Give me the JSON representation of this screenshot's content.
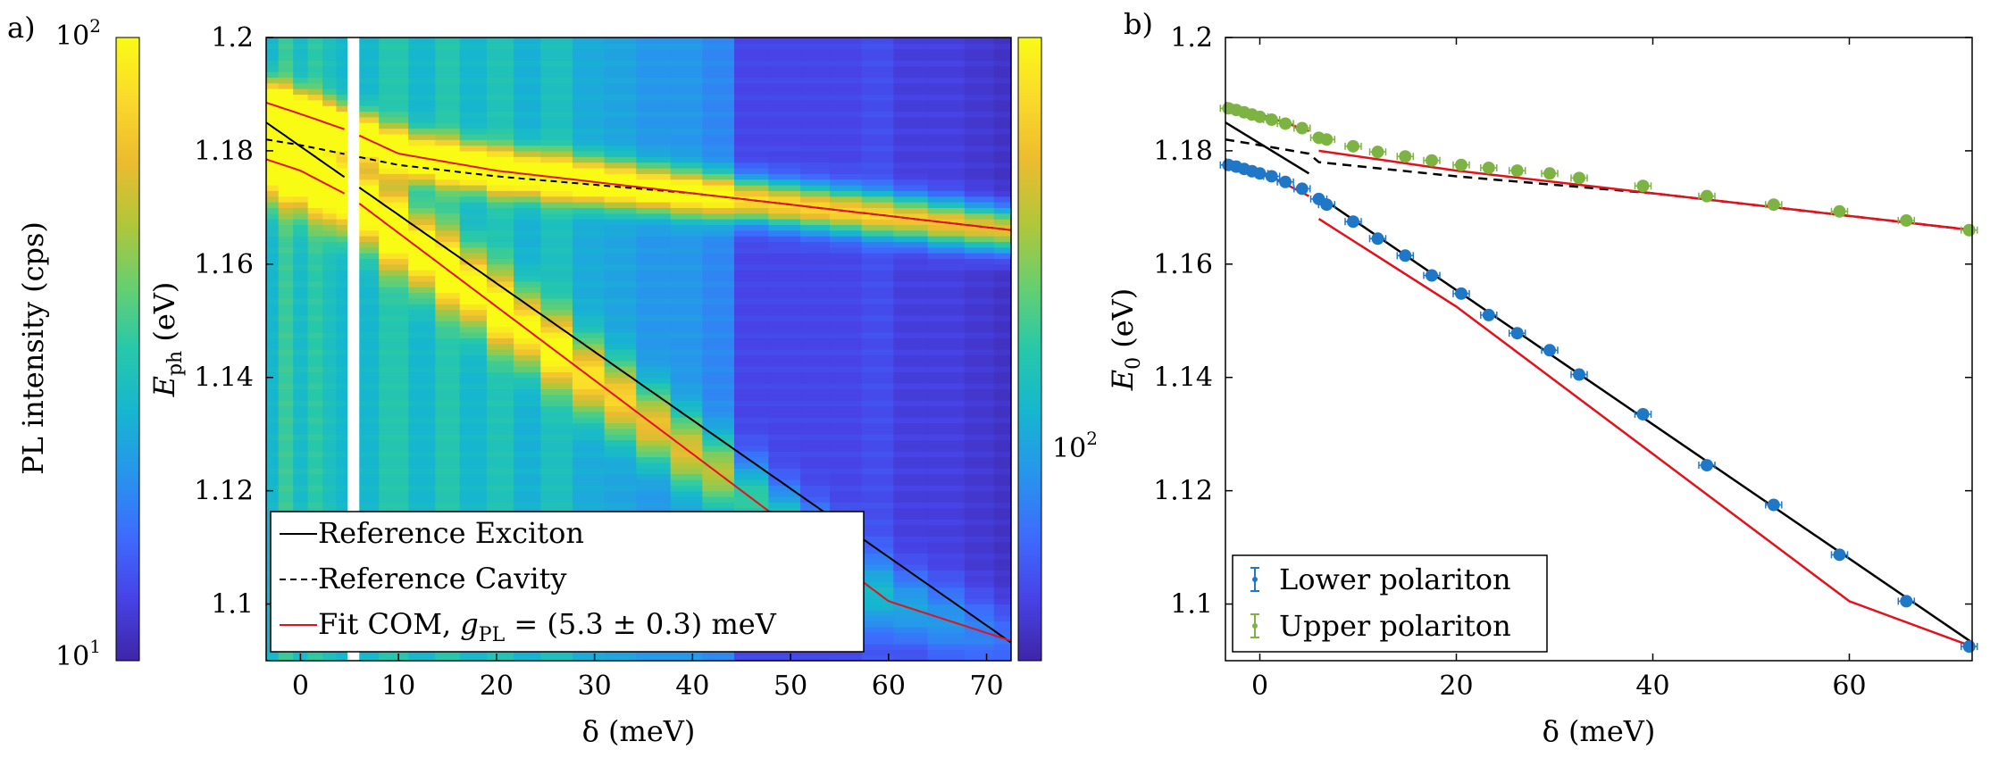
{
  "panel_labels": {
    "a": "a)",
    "b": "b)"
  },
  "colors": {
    "exciton": "#000000",
    "cavity": "#000000",
    "fit": "#e3111b",
    "lower": "#1f77c8",
    "upper": "#7cb342",
    "cmap": [
      "#3e26a8",
      "#4743e6",
      "#3d6cfd",
      "#2795ec",
      "#16b6cf",
      "#27c8aa",
      "#67cf6f",
      "#b1c63a",
      "#ecbb2f",
      "#fad92b",
      "#f9fb15"
    ]
  },
  "chart_data": [
    {
      "panel": "a",
      "type": "heatmap",
      "xlabel": "δ (meV)",
      "ylabel": "E_ph (eV)",
      "ylabel_main": "E",
      "ylabel_sub": "ph",
      "ylabel_unit": " (eV)",
      "xlim": [
        -3.5,
        72.5
      ],
      "ylim": [
        1.09,
        1.2
      ],
      "xticks": [
        "0",
        "10",
        "20",
        "30",
        "40",
        "50",
        "60",
        "70"
      ],
      "xtick_values": [
        0,
        10,
        20,
        30,
        40,
        50,
        60,
        70
      ],
      "yticks": [
        "1.1",
        "1.12",
        "1.14",
        "1.16",
        "1.18",
        "1.2"
      ],
      "ytick_values": [
        1.1,
        1.12,
        1.14,
        1.16,
        1.18,
        1.2
      ],
      "gap": [
        4.8,
        6.0
      ],
      "columns_x": [
        -3,
        -1.5,
        0,
        1.5,
        3,
        4.3,
        6.5,
        9.5,
        12.5,
        15,
        17.5,
        20.5,
        23,
        26,
        29.5,
        32.5,
        36,
        39.5,
        42.5,
        46,
        49.5,
        52.5,
        55.5,
        59,
        62,
        66,
        69.5,
        72
      ],
      "columns_bg": [
        0.4,
        0.52,
        0.42,
        0.5,
        0.44,
        0.4,
        0.4,
        0.48,
        0.4,
        0.48,
        0.4,
        0.46,
        0.38,
        0.44,
        0.36,
        0.34,
        0.3,
        0.3,
        0.26,
        0.1,
        0.1,
        0.1,
        0.1,
        0.12,
        0.08,
        0.08,
        0.06,
        0.04
      ],
      "lines": [
        {
          "name": "Reference Exciton",
          "style": "solid",
          "color": "#000000",
          "x": [
            -3.5,
            72.5
          ],
          "y": [
            1.185,
            1.0932
          ]
        },
        {
          "name": "Reference Cavity",
          "style": "dashed",
          "color": "#000000",
          "x": [
            -3.5,
            0,
            10,
            20,
            30,
            40,
            50,
            60,
            72.5
          ],
          "y": [
            1.182,
            1.181,
            1.1775,
            1.1755,
            1.174,
            1.1725,
            1.1705,
            1.1685,
            1.166
          ]
        },
        {
          "name": "Fit COM upper",
          "style": "solid",
          "color": "#e3111b",
          "x": [
            -3.5,
            0,
            5,
            10,
            20,
            30,
            40,
            50,
            60,
            72.5
          ],
          "y": [
            1.1885,
            1.1865,
            1.1835,
            1.1795,
            1.1765,
            1.1745,
            1.1725,
            1.1705,
            1.1685,
            1.166
          ]
        },
        {
          "name": "Fit COM lower",
          "style": "solid",
          "color": "#e3111b",
          "x": [
            -3.5,
            0,
            5,
            10,
            20,
            30,
            40,
            50,
            60,
            72.5
          ],
          "y": [
            1.1785,
            1.1765,
            1.172,
            1.1655,
            1.1525,
            1.1395,
            1.1265,
            1.1135,
            1.1005,
            1.0935
          ]
        }
      ],
      "legend": [
        {
          "label": "Reference Exciton",
          "style": "solid",
          "color": "#000000"
        },
        {
          "label": "Reference Cavity",
          "style": "dashed",
          "color": "#000000"
        },
        {
          "label": "Fit COM, ",
          "math": "g",
          "math_sub": "PL",
          "math_tail": " = (5.3 ± 0.3) meV",
          "style": "solid",
          "color": "#e3111b"
        }
      ],
      "legend_position": "bottom-left",
      "colorbar_left": {
        "label": "PL intensity (cps)",
        "max_label": "10",
        "max_exp": "2",
        "min_label": "10",
        "min_exp": "1"
      },
      "colorbar_right": {
        "label": "10",
        "label_exp": "2"
      }
    },
    {
      "panel": "b",
      "type": "scatter",
      "xlabel": "δ (meV)",
      "ylabel": "E_0 (eV)",
      "ylabel_main": "E",
      "ylabel_sub": "0",
      "ylabel_unit": " (eV)",
      "xlim": [
        -3.5,
        72.5
      ],
      "ylim": [
        1.09,
        1.2
      ],
      "xticks": [
        "0",
        "20",
        "40",
        "60"
      ],
      "xtick_values": [
        0,
        20,
        40,
        60
      ],
      "yticks": [
        "1.1",
        "1.12",
        "1.14",
        "1.16",
        "1.18",
        "1.2"
      ],
      "ytick_values": [
        1.1,
        1.12,
        1.14,
        1.16,
        1.18,
        1.2
      ],
      "series": [
        {
          "name": "Lower polariton",
          "color": "#1f77c8",
          "x": [
            -3.2,
            -2.4,
            -1.6,
            -0.8,
            0,
            1.2,
            2.6,
            4.3,
            6.0,
            6.8,
            9.5,
            12.0,
            14.8,
            17.5,
            20.5,
            23.3,
            26.2,
            29.5,
            32.5,
            39.0,
            45.5,
            52.3,
            59.0,
            65.8,
            72.2
          ],
          "y": [
            1.1775,
            1.1772,
            1.1768,
            1.1764,
            1.176,
            1.1755,
            1.1745,
            1.1733,
            1.1715,
            1.1705,
            1.1675,
            1.1645,
            1.1615,
            1.158,
            1.1548,
            1.151,
            1.1478,
            1.1448,
            1.1405,
            1.1335,
            1.1245,
            1.1175,
            1.1087,
            1.1005,
            1.0925
          ]
        },
        {
          "name": "Upper polariton",
          "color": "#7cb342",
          "x": [
            -3.2,
            -2.4,
            -1.6,
            -0.8,
            0,
            1.2,
            2.6,
            4.3,
            6.0,
            6.8,
            9.5,
            12.0,
            14.8,
            17.5,
            20.5,
            23.3,
            26.2,
            29.5,
            32.5,
            39.0,
            45.5,
            52.3,
            59.0,
            65.8,
            72.2
          ],
          "y": [
            1.1875,
            1.1872,
            1.1868,
            1.1864,
            1.186,
            1.1855,
            1.1848,
            1.184,
            1.1823,
            1.182,
            1.1808,
            1.1798,
            1.179,
            1.1783,
            1.1775,
            1.177,
            1.1765,
            1.176,
            1.1752,
            1.1738,
            1.172,
            1.1705,
            1.1693,
            1.1677,
            1.166
          ]
        }
      ],
      "lines": [
        {
          "name": "Exciton",
          "style": "solid",
          "color": "#000000",
          "x": [
            -3.5,
            5
          ],
          "y": [
            1.185,
            1.176
          ]
        },
        {
          "name": "Exciton",
          "style": "solid",
          "color": "#000000",
          "x": [
            6,
            72.5
          ],
          "y": [
            1.172,
            1.0932
          ]
        },
        {
          "name": "Cavity",
          "style": "dashed",
          "color": "#000000",
          "x": [
            -3.5,
            0,
            5,
            6,
            20,
            40,
            60,
            72.5
          ],
          "y": [
            1.182,
            1.181,
            1.1795,
            1.178,
            1.1755,
            1.1725,
            1.1685,
            1.166
          ]
        },
        {
          "name": "Fit upper",
          "style": "solid",
          "color": "#e3111b",
          "x": [
            -3.5,
            0,
            5
          ],
          "y": [
            1.1885,
            1.1865,
            1.1835
          ]
        },
        {
          "name": "Fit upper",
          "style": "solid",
          "color": "#e3111b",
          "x": [
            6,
            20,
            40,
            60,
            72.5
          ],
          "y": [
            1.18,
            1.1765,
            1.1725,
            1.1685,
            1.166
          ]
        },
        {
          "name": "Fit lower",
          "style": "solid",
          "color": "#e3111b",
          "x": [
            -3.5,
            0,
            5
          ],
          "y": [
            1.1785,
            1.1765,
            1.172
          ]
        },
        {
          "name": "Fit lower",
          "style": "solid",
          "color": "#e3111b",
          "x": [
            6,
            20,
            40,
            60,
            72.5
          ],
          "y": [
            1.168,
            1.1525,
            1.1265,
            1.1005,
            1.0925
          ]
        }
      ],
      "legend": [
        {
          "label": "Lower polariton",
          "color": "#1f77c8"
        },
        {
          "label": "Upper polariton",
          "color": "#7cb342"
        }
      ],
      "legend_position": "bottom-left"
    }
  ]
}
